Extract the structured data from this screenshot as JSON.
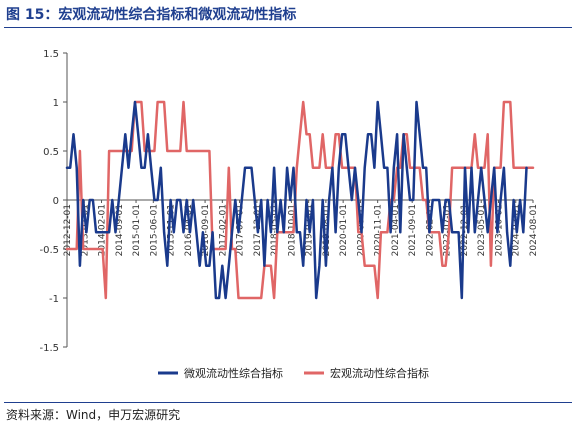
{
  "figure": {
    "title": "图 15：宏观流动性综合指标和微观流动性指标",
    "source": "资料来源：Wind，申万宏源研究"
  },
  "chart_data": {
    "type": "line",
    "ylim": [
      -1.5,
      1.5
    ],
    "yticks": [
      -1.5,
      -1,
      -0.5,
      0,
      0.5,
      1,
      1.5
    ],
    "grid": false,
    "legend_position": "bottom",
    "x_tick_labels": [
      "2012-12-01",
      "2013-07-01",
      "2014-02-01",
      "2014-09-01",
      "2015-01-01",
      "2015-06-01",
      "2015-11-01",
      "2016-04-01",
      "2016-09-01",
      "2017-02-01",
      "2017-07-01",
      "2017-12-01",
      "2018-05-01",
      "2018-10-01",
      "2019-03-01",
      "2019-08-01",
      "2020-01-01",
      "2020-06-01",
      "2020-11-01",
      "2021-04-01",
      "2021-09-01",
      "2022-02-01",
      "2022-07-01",
      "2022-12-01",
      "2023-05-01",
      "2023-10-01",
      "2024-03-01",
      "2024-08-01"
    ],
    "series": [
      {
        "name": "微观流动性综合指标",
        "color": "#1a3a8c",
        "values": [
          0.33,
          0.33,
          0.67,
          0.33,
          -0.67,
          0.0,
          -0.33,
          0.0,
          0.0,
          -0.33,
          -0.33,
          -0.33,
          -0.33,
          -0.33,
          0.0,
          -0.33,
          0.0,
          0.33,
          0.67,
          0.33,
          0.67,
          1.0,
          0.67,
          0.33,
          0.33,
          0.67,
          0.33,
          0.0,
          0.0,
          0.33,
          -0.33,
          -0.67,
          0.0,
          -0.33,
          0.0,
          0.0,
          -0.33,
          0.0,
          -0.33,
          0.0,
          -0.33,
          -0.67,
          -0.33,
          -0.67,
          -0.67,
          -0.33,
          -1.0,
          -1.0,
          -0.67,
          -1.0,
          -0.67,
          -0.33,
          0.0,
          -0.33,
          0.0,
          0.33,
          0.33,
          0.33,
          0.0,
          -0.33,
          0.0,
          -0.67,
          0.0,
          -0.33,
          0.33,
          -0.33,
          0.0,
          -0.33,
          0.33,
          0.0,
          0.33,
          -0.33,
          -0.33,
          -0.67,
          0.0,
          -0.33,
          0.0,
          -1.0,
          -0.67,
          0.0,
          -0.67,
          0.0,
          0.33,
          -0.33,
          0.33,
          0.67,
          0.67,
          0.33,
          0.0,
          0.33,
          0.0,
          -0.33,
          0.33,
          0.67,
          0.67,
          0.33,
          1.0,
          0.67,
          0.33,
          0.33,
          -0.33,
          0.33,
          0.67,
          -0.33,
          0.67,
          0.33,
          0.0,
          0.0,
          1.0,
          0.67,
          0.33,
          0.33,
          -0.33,
          0.0,
          0.0,
          0.0,
          -0.33,
          0.0,
          0.0,
          -0.33,
          -0.33,
          -0.33,
          -1.0,
          0.33,
          -0.33,
          0.33,
          -0.33,
          0.0,
          0.33,
          0.0,
          -0.33,
          0.0,
          0.33,
          -0.33,
          0.0,
          0.33,
          -0.33,
          -0.67,
          0.0,
          -0.33,
          0.0,
          -0.33,
          0.33
        ]
      },
      {
        "name": "宏观流动性综合指标",
        "color": "#e06666",
        "values": [
          -0.5,
          -0.5,
          -0.5,
          -0.5,
          0.5,
          -0.5,
          -0.5,
          -0.5,
          -0.5,
          -0.5,
          -0.5,
          -0.5,
          -1.0,
          0.5,
          0.5,
          0.5,
          0.5,
          0.5,
          0.5,
          0.5,
          0.5,
          1.0,
          1.0,
          1.0,
          0.5,
          0.5,
          0.5,
          0.5,
          1.0,
          1.0,
          1.0,
          0.5,
          0.5,
          0.5,
          0.5,
          0.5,
          1.0,
          0.5,
          0.5,
          0.5,
          0.5,
          0.5,
          0.5,
          0.5,
          0.5,
          -0.5,
          -0.5,
          -0.5,
          -0.5,
          -0.5,
          0.33,
          -0.5,
          -0.5,
          -1.0,
          -1.0,
          -1.0,
          -1.0,
          -1.0,
          -1.0,
          -1.0,
          -1.0,
          -0.67,
          -0.67,
          -0.67,
          -1.0,
          -0.33,
          -0.33,
          -0.33,
          -0.33,
          -0.33,
          -0.33,
          0.33,
          0.67,
          1.0,
          0.67,
          0.67,
          0.33,
          0.33,
          0.33,
          0.67,
          0.33,
          0.33,
          0.33,
          0.67,
          0.67,
          0.33,
          0.33,
          0.33,
          0.33,
          0.33,
          -0.33,
          -0.33,
          -0.67,
          -0.67,
          -0.67,
          -0.67,
          -1.0,
          -0.33,
          -0.33,
          -0.33,
          0.0,
          0.0,
          0.33,
          0.33,
          0.67,
          0.67,
          0.33,
          0.33,
          0.33,
          0.33,
          0.0,
          0.0,
          -0.33,
          -0.33,
          -0.33,
          -0.33,
          -0.67,
          -0.67,
          -0.33,
          0.33,
          0.33,
          0.33,
          0.33,
          0.33,
          0.33,
          0.33,
          0.67,
          0.33,
          0.33,
          0.33,
          0.67,
          -0.67,
          0.33,
          0.33,
          0.33,
          1.0,
          1.0,
          1.0,
          0.33,
          0.33,
          0.33,
          0.33,
          0.33,
          0.33,
          0.33
        ]
      }
    ]
  }
}
